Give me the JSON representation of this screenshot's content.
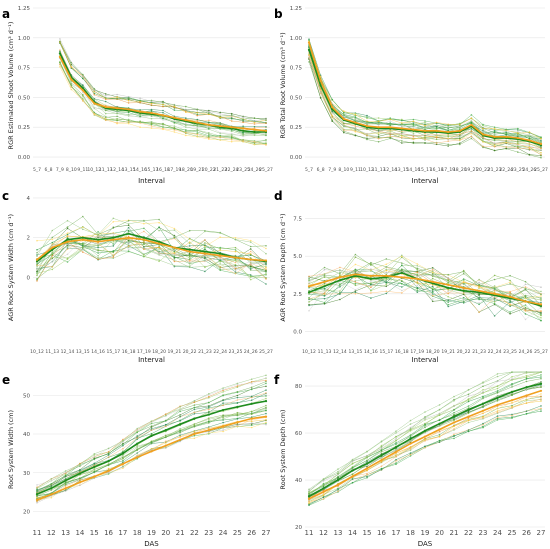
{
  "colors": {
    "mean_green": "#1e8c1e",
    "mean_orange": "#f0a020",
    "lines_green": [
      "#2e8b57",
      "#6aa84f",
      "#93c47d",
      "#38761d",
      "#4caf50",
      "#7cb342",
      "#9ccc65",
      "#2f9e44"
    ],
    "lines_orange": [
      "#f6b26b",
      "#e69138",
      "#ffd966",
      "#f1c232",
      "#fbbc6c"
    ],
    "lines_grey": [
      "#bdbdbd",
      "#d0d0d0"
    ],
    "grid": "#e6e6e6"
  },
  "chart_data": [
    {
      "panel": "a",
      "type": "line",
      "xlabel": "Interval",
      "ylabel": "RGR Estimated Shoot Volume (cm³ d⁻¹)",
      "categories": [
        "5_7",
        "6_8",
        "7_9",
        "8_10",
        "9_11",
        "10_12",
        "11_13",
        "12_14",
        "13_15",
        "14_16",
        "15_17",
        "16_18",
        "17_19",
        "18_20",
        "19_21",
        "20_22",
        "21_23",
        "22_24",
        "23_25",
        "24_26",
        "25_27"
      ],
      "yticks": [
        "0.00",
        "0.25",
        "0.50",
        "0.75",
        "1.00",
        "1.25"
      ],
      "ylim": [
        -0.05,
        1.25
      ],
      "series": [
        {
          "role": "mean",
          "color": "mean_green",
          "values": [
            null,
            null,
            0.87,
            0.67,
            0.58,
            0.46,
            0.41,
            0.4,
            0.39,
            0.37,
            0.36,
            0.35,
            0.32,
            0.3,
            0.28,
            0.27,
            0.25,
            0.24,
            0.22,
            0.21,
            0.21
          ]
        },
        {
          "role": "mean",
          "color": "mean_orange",
          "values": [
            null,
            null,
            0.84,
            0.65,
            0.56,
            0.45,
            0.42,
            0.41,
            0.4,
            0.38,
            0.37,
            0.35,
            0.33,
            0.31,
            0.29,
            0.27,
            0.26,
            0.25,
            0.24,
            0.23,
            0.22
          ]
        }
      ]
    },
    {
      "panel": "b",
      "type": "line",
      "xlabel": "Interval",
      "ylabel": "RGR Total Root Volume (cm³ d⁻¹)",
      "categories": [
        "5_7",
        "6_8",
        "7_9",
        "8_10",
        "9_11",
        "10_12",
        "11_13",
        "12_14",
        "13_15",
        "14_16",
        "15_17",
        "16_18",
        "17_19",
        "18_20",
        "19_21",
        "20_22",
        "21_23",
        "22_24",
        "23_25",
        "24_26",
        "25_27"
      ],
      "yticks": [
        "0.00",
        "0.25",
        "0.50",
        "0.75",
        "1.00",
        "1.25"
      ],
      "ylim": [
        -0.05,
        1.25
      ],
      "series": [
        {
          "role": "mean",
          "color": "mean_green",
          "values": [
            0.9,
            0.6,
            0.4,
            0.31,
            0.28,
            0.25,
            0.24,
            0.24,
            0.23,
            0.22,
            0.21,
            0.21,
            0.2,
            0.21,
            0.26,
            0.18,
            0.16,
            0.16,
            0.15,
            0.13,
            0.1
          ]
        },
        {
          "role": "mean",
          "color": "mean_orange",
          "values": [
            0.96,
            0.64,
            0.42,
            0.32,
            0.29,
            0.26,
            0.25,
            0.25,
            0.24,
            0.23,
            0.22,
            0.22,
            0.21,
            0.22,
            0.27,
            0.19,
            0.17,
            0.17,
            0.16,
            0.14,
            0.11
          ]
        }
      ]
    },
    {
      "panel": "c",
      "type": "line",
      "xlabel": "Interval",
      "ylabel": "AGR Root System Width (cm d⁻¹)",
      "categories": [
        "10_12",
        "11_13",
        "12_14",
        "13_15",
        "14_16",
        "15_17",
        "16_18",
        "17_19",
        "18_20",
        "19_21",
        "20_22",
        "21_23",
        "22_24",
        "23_25",
        "24_26",
        "25_27"
      ],
      "yticks": [
        "0",
        "2",
        "4"
      ],
      "ylim": [
        -3.4,
        4.4
      ],
      "series": [
        {
          "role": "mean",
          "color": "mean_green",
          "values": [
            0.8,
            1.4,
            1.9,
            2.0,
            1.9,
            2.0,
            2.2,
            2.0,
            1.8,
            1.5,
            1.4,
            1.3,
            1.2,
            1.0,
            0.9,
            0.8
          ]
        },
        {
          "role": "mean",
          "color": "mean_orange",
          "values": [
            0.9,
            1.5,
            1.8,
            1.9,
            1.8,
            1.9,
            2.0,
            1.9,
            1.7,
            1.5,
            1.3,
            1.2,
            1.1,
            1.0,
            0.9,
            0.85
          ]
        }
      ]
    },
    {
      "panel": "d",
      "type": "line",
      "xlabel": "Interval",
      "ylabel": "AGR Root System Depth (cm d⁻¹)",
      "categories": [
        "10_12",
        "11_13",
        "12_14",
        "13_15",
        "14_16",
        "15_17",
        "16_18",
        "17_19",
        "18_20",
        "19_21",
        "20_22",
        "21_23",
        "22_24",
        "23_25",
        "24_26",
        "25_27"
      ],
      "yticks": [
        "0.0",
        "2.5",
        "5.0",
        "7.5"
      ],
      "ylim": [
        -0.9,
        9.4
      ],
      "series": [
        {
          "role": "mean",
          "color": "mean_green",
          "values": [
            2.6,
            3.0,
            3.4,
            3.7,
            3.5,
            3.6,
            3.9,
            3.5,
            3.2,
            2.9,
            2.7,
            2.6,
            2.4,
            2.2,
            2.0,
            1.7
          ]
        },
        {
          "role": "mean",
          "color": "mean_orange",
          "values": [
            3.0,
            3.3,
            3.6,
            3.8,
            3.7,
            3.7,
            3.6,
            3.5,
            3.3,
            3.1,
            2.9,
            2.7,
            2.5,
            2.3,
            2.0,
            1.8
          ]
        }
      ]
    },
    {
      "panel": "e",
      "type": "line",
      "xlabel": "DAS",
      "ylabel": "Root System Width (cm)",
      "categories": [
        "11",
        "12",
        "13",
        "14",
        "15",
        "16",
        "17",
        "18",
        "19",
        "20",
        "21",
        "22",
        "23",
        "24",
        "25",
        "26",
        "27"
      ],
      "yticks": [
        "20",
        "30",
        "40",
        "50"
      ],
      "ylim": [
        16,
        56
      ],
      "series": [
        {
          "role": "mean",
          "color": "mean_green",
          "values": [
            24.5,
            26,
            28,
            29.8,
            31.5,
            33,
            35,
            37.5,
            39.5,
            41,
            42.5,
            44,
            45,
            46.2,
            47,
            47.8,
            48.5
          ]
        },
        {
          "role": "mean",
          "color": "mean_orange",
          "values": [
            23,
            24.4,
            26,
            27.5,
            29,
            30.5,
            32.3,
            34,
            35.5,
            37,
            38.5,
            40,
            41,
            42,
            43,
            44,
            44.5
          ]
        }
      ]
    },
    {
      "panel": "f",
      "type": "line",
      "xlabel": "DAS",
      "ylabel": "Root System Depth (cm)",
      "categories": [
        "11",
        "12",
        "13",
        "14",
        "15",
        "16",
        "17",
        "18",
        "19",
        "20",
        "21",
        "22",
        "23",
        "24",
        "25",
        "26",
        "27"
      ],
      "yticks": [
        "20",
        "40",
        "60",
        "80"
      ],
      "ylim": [
        20,
        86
      ],
      "series": [
        {
          "role": "mean",
          "color": "mean_green",
          "values": [
            33,
            36.5,
            40,
            44,
            47,
            50.5,
            54,
            57.5,
            61,
            64,
            67,
            70,
            72.5,
            75,
            77.5,
            79.5,
            81
          ]
        },
        {
          "role": "mean",
          "color": "mean_orange",
          "values": [
            32,
            35,
            38,
            41.5,
            45,
            48.5,
            52,
            55.5,
            58.5,
            61.5,
            64.5,
            67,
            69.5,
            72,
            74,
            76,
            78
          ]
        }
      ]
    }
  ]
}
